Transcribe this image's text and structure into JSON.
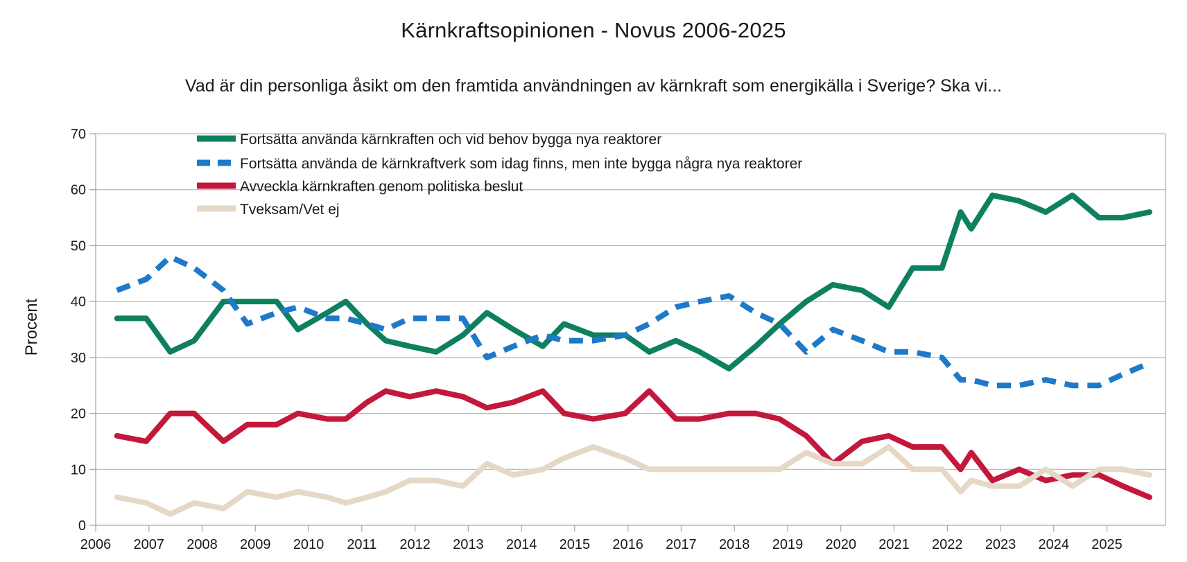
{
  "title": "Kärnkraftsopinionen - Novus 2006-2025",
  "subtitle": "Vad är din personliga åsikt om den framtida användningen av kärnkraft som energikälla i Sverige? Ska vi...",
  "ylabel": "Procent",
  "axis_color": "#a9a9a9",
  "text_color": "#1a1a1a",
  "chart_data": {
    "type": "line",
    "title": "Kärnkraftsopinionen - Novus 2006-2025",
    "subtitle": "Vad är din personliga åsikt om den framtida användningen av kärnkraft som energikälla i Sverige? Ska vi...",
    "xlabel": "",
    "ylabel": "Procent",
    "xlim": [
      2006,
      2026.1
    ],
    "ylim": [
      0,
      70
    ],
    "grid": "horizontal",
    "legend_position": "top-left-inside",
    "xticks": [
      2006,
      2007,
      2008,
      2009,
      2010,
      2011,
      2012,
      2013,
      2014,
      2015,
      2016,
      2017,
      2018,
      2019,
      2020,
      2021,
      2022,
      2023,
      2024,
      2025
    ],
    "yticks": [
      0,
      10,
      20,
      30,
      40,
      50,
      60,
      70
    ],
    "x": [
      2006.4,
      2006.95,
      2007.4,
      2007.85,
      2008.4,
      2008.85,
      2009.4,
      2009.8,
      2010.35,
      2010.7,
      2011.1,
      2011.45,
      2011.9,
      2012.4,
      2012.9,
      2013.35,
      2013.85,
      2014.4,
      2014.8,
      2015.35,
      2015.95,
      2016.4,
      2016.9,
      2017.35,
      2017.9,
      2018.4,
      2018.85,
      2019.35,
      2019.85,
      2020.4,
      2020.9,
      2021.35,
      2021.9,
      2022.25,
      2022.45,
      2022.85,
      2023.35,
      2023.85,
      2024.35,
      2024.85,
      2025.3,
      2025.8
    ],
    "series": [
      {
        "key": "fortsatta-bygga-nya",
        "name": "Fortsätta använda kärnkraften och vid behov bygga nya reaktorer",
        "color": "#0E8060",
        "dash": false,
        "values": [
          37,
          37,
          31,
          33,
          40,
          40,
          40,
          35,
          38,
          40,
          36,
          33,
          32,
          31,
          34,
          38,
          35,
          32,
          36,
          34,
          34,
          31,
          33,
          31,
          28,
          32,
          36,
          40,
          43,
          42,
          39,
          46,
          46,
          56,
          53,
          59,
          58,
          56,
          59,
          55,
          55,
          56
        ]
      },
      {
        "key": "behalla-befintliga",
        "name": "Fortsätta använda de kärnkraftverk som idag finns, men inte bygga några nya reaktorer",
        "color": "#1E79C8",
        "dash": true,
        "values": [
          42,
          44,
          48,
          46,
          42,
          36,
          38,
          39,
          37,
          37,
          36,
          35,
          37,
          37,
          37,
          30,
          32,
          34,
          33,
          33,
          34,
          36,
          39,
          40,
          41,
          38,
          36,
          31,
          35,
          33,
          31,
          31,
          30,
          26,
          26,
          25,
          25,
          26,
          25,
          25,
          27,
          29
        ]
      },
      {
        "key": "avveckla",
        "name": "Avveckla kärnkraften genom politiska beslut",
        "color": "#C3183C",
        "dash": false,
        "values": [
          16,
          15,
          20,
          20,
          15,
          18,
          18,
          20,
          19,
          19,
          22,
          24,
          23,
          24,
          23,
          21,
          22,
          24,
          20,
          19,
          20,
          24,
          19,
          19,
          20,
          20,
          19,
          16,
          11,
          15,
          16,
          14,
          14,
          10,
          13,
          8,
          10,
          8,
          9,
          9,
          7,
          5
        ]
      },
      {
        "key": "tveksam-vet-ej",
        "name": "Tveksam/Vet ej",
        "color": "#E6D8C7",
        "dash": false,
        "values": [
          5,
          4,
          2,
          4,
          3,
          6,
          5,
          6,
          5,
          4,
          5,
          6,
          8,
          8,
          7,
          11,
          9,
          10,
          12,
          14,
          12,
          10,
          10,
          10,
          10,
          10,
          10,
          13,
          11,
          11,
          14,
          10,
          10,
          6,
          8,
          7,
          7,
          10,
          7,
          10,
          10,
          9
        ]
      }
    ]
  }
}
